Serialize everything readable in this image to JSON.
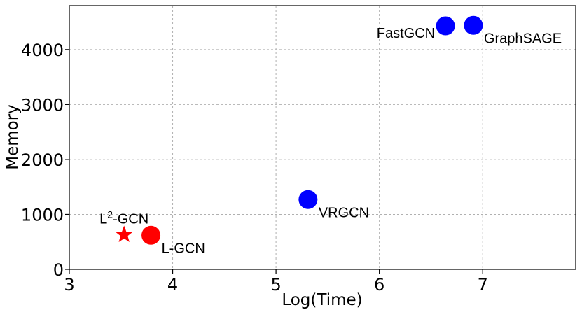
{
  "chart_data": {
    "type": "scatter",
    "title": "",
    "xlabel": "Log(Time)",
    "ylabel": "Memory",
    "xlim": [
      3,
      7.9
    ],
    "ylim": [
      0,
      4800
    ],
    "xticks": [
      3,
      4,
      5,
      6,
      7
    ],
    "yticks": [
      0,
      1000,
      2000,
      3000,
      4000
    ],
    "grid": true,
    "points": [
      {
        "label": "FastGCN",
        "x": 6.64,
        "y": 4430,
        "color": "#0000ff",
        "marker": "circle",
        "label_side": "left"
      },
      {
        "label": "GraphSAGE",
        "x": 6.91,
        "y": 4440,
        "color": "#0000ff",
        "marker": "circle",
        "label_side": "right"
      },
      {
        "label": "VRGCN",
        "x": 5.31,
        "y": 1270,
        "color": "#0000ff",
        "marker": "circle",
        "label_side": "right"
      },
      {
        "label": "L-GCN",
        "x": 3.79,
        "y": 620,
        "color": "#ff0000",
        "marker": "circle",
        "label_side": "right"
      },
      {
        "label": "L2-GCN",
        "label_base": "L",
        "label_sup": "2",
        "label_rest": "-GCN",
        "x": 3.53,
        "y": 630,
        "color": "#ff0000",
        "marker": "star",
        "label_side": "above"
      }
    ]
  }
}
